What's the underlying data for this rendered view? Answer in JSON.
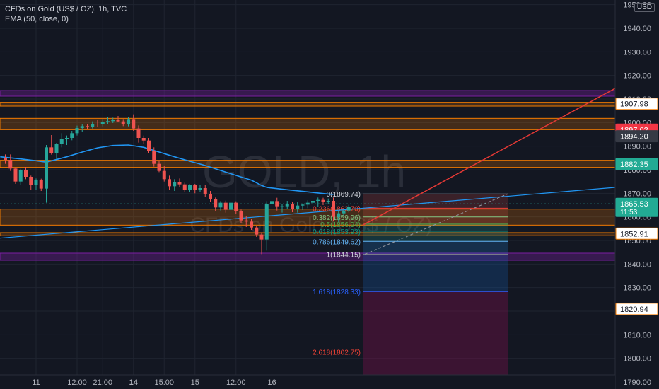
{
  "legend": {
    "symbol": "CFDs on Gold (US$ / OZ), 1h, TVC",
    "indicator": "EMA (50, close, 0)"
  },
  "currency_label": "USD",
  "watermark": {
    "ticker": "GOLD, 1h",
    "name": "CFDs on Gold (US$ / OZ)"
  },
  "colors": {
    "background": "#131722",
    "up": "#26a69a",
    "down": "#ef5350",
    "ema": "#2196f3",
    "purple_zone": "#7b1fa2",
    "orange_zone": "#f57c00",
    "trendline": "#e53935"
  },
  "y_axis": {
    "min": 1787,
    "max": 1952,
    "ticks": [
      "1790.00",
      "1800.00",
      "1810.00",
      "1820.00",
      "1830.00",
      "1840.00",
      "1850.00",
      "1860.00",
      "1870.00",
      "1880.00",
      "1890.00",
      "1900.00",
      "1910.00",
      "1920.00",
      "1930.00",
      "1940.00",
      "1950.00"
    ]
  },
  "x_axis": {
    "ticks": [
      {
        "label": "11",
        "bar": 6
      },
      {
        "label": "12:00",
        "bar": 14
      },
      {
        "label": "21:00",
        "bar": 19
      },
      {
        "label": "14",
        "bold": true,
        "bar": 25
      },
      {
        "label": "15:00",
        "bar": 31
      },
      {
        "label": "15",
        "bar": 37
      },
      {
        "label": "12:00",
        "bar": 45
      },
      {
        "label": "16",
        "bar": 52
      }
    ]
  },
  "price_badges": [
    {
      "label": "1907.98",
      "value": 1907.98,
      "type": "outline"
    },
    {
      "label": "1897.02",
      "value": 1897.02,
      "type": "red"
    },
    {
      "label": "1894.20",
      "value": 1894.2,
      "type": "gray"
    },
    {
      "label": "1882.35",
      "value": 1882.35,
      "type": "teal"
    },
    {
      "label": "1865.53",
      "value": 1865.53,
      "type": "teal",
      "sub": "11:53"
    },
    {
      "label": "1852.91",
      "value": 1852.91,
      "type": "outline"
    },
    {
      "label": "1820.94",
      "value": 1820.94,
      "type": "outline"
    }
  ],
  "fibonacci": {
    "levels": [
      {
        "label": "0(1869.74)",
        "value": 1869.74
      },
      {
        "label": "0.236(1863.70)",
        "value": 1863.7
      },
      {
        "label": "0.382(1859.96)",
        "value": 1859.96
      },
      {
        "label": "0.5(1856.94)",
        "value": 1856.94
      },
      {
        "label": "0.618(1853.93)",
        "value": 1853.93
      },
      {
        "label": "0.786(1849.62)",
        "value": 1849.62
      },
      {
        "label": "1(1844.15)",
        "value": 1844.15
      },
      {
        "label": "1.618(1828.33)",
        "value": 1828.33
      },
      {
        "label": "2.618(1802.75)",
        "value": 1802.75
      }
    ]
  },
  "zones": [
    {
      "from": 1911.2,
      "to": 1913.6,
      "color": "purple"
    },
    {
      "from": 1907.0,
      "to": 1908.6,
      "color": "orange"
    },
    {
      "from": 1897.0,
      "to": 1901.8,
      "color": "orange"
    },
    {
      "from": 1881.0,
      "to": 1884.0,
      "color": "orange"
    },
    {
      "from": 1856.5,
      "to": 1863.3,
      "color": "orange"
    },
    {
      "from": 1852.0,
      "to": 1853.3,
      "color": "orange"
    },
    {
      "from": 1841.6,
      "to": 1844.6,
      "color": "purple"
    }
  ],
  "candles": [
    [
      1885,
      1886.5,
      1882.5,
      1884.2
    ],
    [
      1884.2,
      1886.5,
      1879.5,
      1880.5
    ],
    [
      1880.5,
      1881,
      1874,
      1875
    ],
    [
      1875,
      1880.4,
      1873.5,
      1879.8
    ],
    [
      1879.8,
      1881.2,
      1876,
      1877
    ],
    [
      1877,
      1877.5,
      1871.5,
      1873.5
    ],
    [
      1873.5,
      1876.3,
      1871.5,
      1875.8
    ],
    [
      1875.8,
      1876.2,
      1871,
      1872
    ],
    [
      1872,
      1890.5,
      1866,
      1889.5
    ],
    [
      1889.5,
      1894.7,
      1886.4,
      1887
    ],
    [
      1887,
      1891.4,
      1884.5,
      1890.8
    ],
    [
      1890.8,
      1895.5,
      1889.5,
      1893.2
    ],
    [
      1893.2,
      1894.5,
      1890.5,
      1893.5
    ],
    [
      1893.5,
      1896.5,
      1892.5,
      1895.5
    ],
    [
      1895.5,
      1898.7,
      1894.5,
      1897.7
    ],
    [
      1897.7,
      1899.5,
      1896.2,
      1898.5
    ],
    [
      1898.5,
      1899.5,
      1897.2,
      1898.1
    ],
    [
      1898.1,
      1900.5,
      1897.5,
      1899.5
    ],
    [
      1899.5,
      1901.2,
      1898.2,
      1899.3
    ],
    [
      1899.3,
      1901.5,
      1898.4,
      1900.2
    ],
    [
      1900.2,
      1902.3,
      1899.4,
      1900.6
    ],
    [
      1900.6,
      1902.1,
      1899.8,
      1901.2
    ],
    [
      1901.2,
      1902.8,
      1900.2,
      1900.5
    ],
    [
      1900.5,
      1901.5,
      1898.5,
      1899.2
    ],
    [
      1899.2,
      1902.3,
      1898.4,
      1901.5
    ],
    [
      1901.5,
      1903.5,
      1896.5,
      1897.5
    ],
    [
      1897.5,
      1898.8,
      1891.5,
      1893.5
    ],
    [
      1893.5,
      1894.5,
      1890.8,
      1892.4
    ],
    [
      1892.4,
      1893.5,
      1887,
      1888
    ],
    [
      1888,
      1889.5,
      1881.3,
      1882.5
    ],
    [
      1882.5,
      1884,
      1879,
      1879.5
    ],
    [
      1879.5,
      1881.5,
      1875,
      1876
    ],
    [
      1876,
      1877.5,
      1871.5,
      1873
    ],
    [
      1873,
      1876,
      1871,
      1874.8
    ],
    [
      1874.8,
      1876.3,
      1872.5,
      1873.8
    ],
    [
      1873.8,
      1874.5,
      1870.5,
      1871.5
    ],
    [
      1871.5,
      1873.8,
      1870.5,
      1873.5
    ],
    [
      1873.5,
      1874,
      1870,
      1871.5
    ],
    [
      1871.5,
      1873.5,
      1870.5,
      1872.2
    ],
    [
      1872.2,
      1873.4,
      1868.5,
      1869.6
    ],
    [
      1869.6,
      1871,
      1866.3,
      1867.7
    ],
    [
      1867.7,
      1868.2,
      1862.5,
      1864
    ],
    [
      1864,
      1866.7,
      1862.7,
      1866
    ],
    [
      1866,
      1866.9,
      1861.8,
      1863
    ],
    [
      1863,
      1866.9,
      1860.7,
      1866
    ],
    [
      1866,
      1866.6,
      1861.3,
      1862.5
    ],
    [
      1862.5,
      1863.1,
      1857.5,
      1858.5
    ],
    [
      1858.5,
      1860.2,
      1855.7,
      1858
    ],
    [
      1858,
      1859.3,
      1854.5,
      1855.5
    ],
    [
      1855.5,
      1856.2,
      1851.5,
      1852.5
    ],
    [
      1852.5,
      1853.5,
      1844.2,
      1850.4
    ],
    [
      1850.4,
      1866.7,
      1845.7,
      1865.4
    ],
    [
      1865.4,
      1867.2,
      1861.2,
      1866.7
    ],
    [
      1866.7,
      1868.1,
      1862.7,
      1864.5
    ],
    [
      1864.5,
      1865.5,
      1861.8,
      1864.5
    ],
    [
      1864.5,
      1866.8,
      1863.2,
      1865.5
    ],
    [
      1865.5,
      1866.2,
      1862,
      1863.5
    ],
    [
      1863.5,
      1866.3,
      1861.8,
      1864.8
    ],
    [
      1864.8,
      1865.7,
      1862.9,
      1865.2
    ],
    [
      1865.2,
      1867,
      1863.7,
      1866
    ],
    [
      1866,
      1867.5,
      1864.3,
      1866.8
    ],
    [
      1866.8,
      1868.2,
      1864.4,
      1867.2
    ],
    [
      1867.2,
      1868.1,
      1865,
      1866.5
    ],
    [
      1866.5,
      1867.8,
      1865.5,
      1866.8
    ],
    [
      1866.8,
      1868.2,
      1858.2,
      1860
    ],
    [
      1860,
      1862.5,
      1857.8,
      1861.5
    ],
    [
      1861.5,
      1863.4,
      1860.5,
      1862.7
    ],
    [
      1862.7,
      1865.1,
      1861.9,
      1864.1
    ]
  ],
  "ema": [
    [
      -1,
      1885.5
    ],
    [
      3,
      1884.6
    ],
    [
      6,
      1883.8
    ],
    [
      8,
      1883.2
    ],
    [
      12,
      1885.5
    ],
    [
      15,
      1887.5
    ],
    [
      18,
      1889.3
    ],
    [
      21,
      1890.3
    ],
    [
      24,
      1890.5
    ],
    [
      27,
      1889.5
    ],
    [
      30,
      1887.5
    ],
    [
      33,
      1885.5
    ],
    [
      36,
      1883.6
    ],
    [
      39,
      1881.8
    ],
    [
      42,
      1879.7
    ],
    [
      45,
      1877.6
    ],
    [
      48,
      1875.6
    ],
    [
      50,
      1873.3
    ],
    [
      51,
      1872.5
    ],
    [
      55,
      1871.5
    ],
    [
      59,
      1870.6
    ],
    [
      62,
      1869.9
    ],
    [
      64,
      1869.5
    ]
  ]
}
